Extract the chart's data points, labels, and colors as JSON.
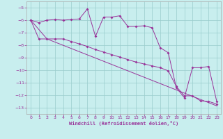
{
  "xlabel": "Windchill (Refroidissement éolien,°C)",
  "bg_color": "#c8eeee",
  "grid_color": "#99cccc",
  "line_color": "#993399",
  "ylim": [
    -13.5,
    -4.5
  ],
  "xlim": [
    -0.5,
    23.5
  ],
  "yticks": [
    -13,
    -12,
    -11,
    -10,
    -9,
    -8,
    -7,
    -6,
    -5
  ],
  "xticks": [
    0,
    1,
    2,
    3,
    4,
    5,
    6,
    7,
    8,
    9,
    10,
    11,
    12,
    13,
    14,
    15,
    16,
    17,
    18,
    19,
    20,
    21,
    22,
    23
  ],
  "line1_x": [
    0,
    1,
    2,
    3,
    4,
    5,
    6,
    7,
    8,
    9,
    10,
    11,
    12,
    13,
    14,
    15,
    16,
    17,
    18,
    19,
    20,
    21,
    22,
    23
  ],
  "line1_y": [
    -6.0,
    -6.2,
    -6.0,
    -5.95,
    -6.0,
    -5.95,
    -5.9,
    -5.1,
    -7.3,
    -5.75,
    -5.75,
    -5.65,
    -6.5,
    -6.5,
    -6.45,
    -6.6,
    -8.2,
    -8.6,
    -11.4,
    -12.2,
    -9.8,
    -9.8,
    -9.7,
    -12.5
  ],
  "line2_x": [
    0,
    1,
    2,
    3,
    4,
    5,
    6,
    7,
    8,
    9,
    10,
    11,
    12,
    13,
    14,
    15,
    16,
    17,
    18,
    19,
    20,
    21,
    22,
    23
  ],
  "line2_y": [
    -6.0,
    -7.5,
    -7.5,
    -7.5,
    -7.5,
    -7.7,
    -7.9,
    -8.1,
    -8.35,
    -8.55,
    -8.75,
    -8.95,
    -9.15,
    -9.35,
    -9.5,
    -9.65,
    -9.8,
    -10.05,
    -11.3,
    -12.05,
    -12.05,
    -12.45,
    -12.5,
    -12.7
  ],
  "line3_x": [
    0,
    2,
    23
  ],
  "line3_y": [
    -6.0,
    -7.5,
    -12.85
  ]
}
